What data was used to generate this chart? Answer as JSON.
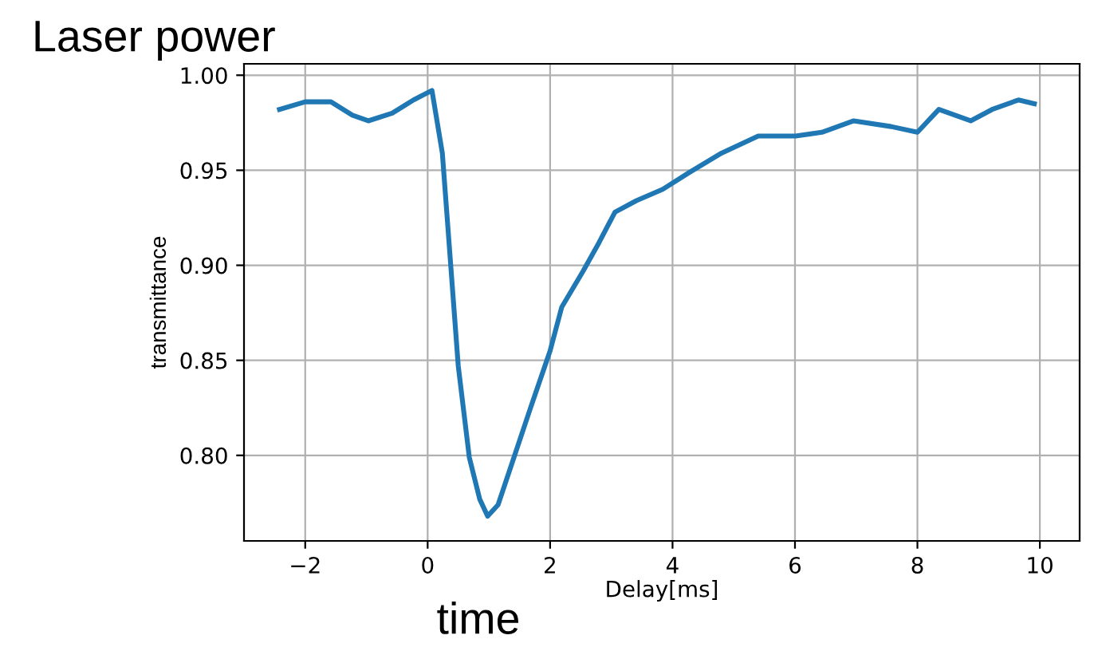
{
  "chart_data": {
    "type": "line",
    "title": "Laser power",
    "xlabel": "Delay[ms]",
    "ylabel": "transmittance",
    "annotations": [
      "time"
    ],
    "x": [
      -2.42,
      -2.0,
      -1.58,
      -1.23,
      -0.97,
      -0.58,
      -0.23,
      0.07,
      0.24,
      0.37,
      0.5,
      0.68,
      0.85,
      0.98,
      1.15,
      1.41,
      1.67,
      2.0,
      2.19,
      2.54,
      2.8,
      3.06,
      3.41,
      3.84,
      4.28,
      4.8,
      5.4,
      6.01,
      6.44,
      6.96,
      7.57,
      8.0,
      8.35,
      8.87,
      9.22,
      9.65,
      9.91
    ],
    "series": [
      {
        "color": "#1f77b4",
        "values": [
          0.982,
          0.986,
          0.986,
          0.979,
          0.976,
          0.98,
          0.987,
          0.992,
          0.959,
          0.903,
          0.847,
          0.799,
          0.777,
          0.768,
          0.774,
          0.799,
          0.824,
          0.855,
          0.878,
          0.897,
          0.912,
          0.928,
          0.934,
          0.94,
          0.949,
          0.959,
          0.968,
          0.968,
          0.97,
          0.976,
          0.973,
          0.97,
          0.982,
          0.976,
          0.982,
          0.987,
          0.985
        ]
      }
    ],
    "xlim": [
      -3.0,
      10.65
    ],
    "ylim": [
      0.755,
      1.006
    ],
    "xticks": [
      {
        "value": -2,
        "label": "−2"
      },
      0,
      2,
      4,
      6,
      8,
      10
    ],
    "yticks": [
      {
        "value": 0.8,
        "label": "0.80"
      },
      {
        "value": 0.85,
        "label": "0.85"
      },
      {
        "value": 0.9,
        "label": "0.90"
      },
      {
        "value": 0.95,
        "label": "0.95"
      },
      {
        "value": 1.0,
        "label": "1.00"
      }
    ],
    "grid": true,
    "marker": "none",
    "line_style": "solid"
  }
}
